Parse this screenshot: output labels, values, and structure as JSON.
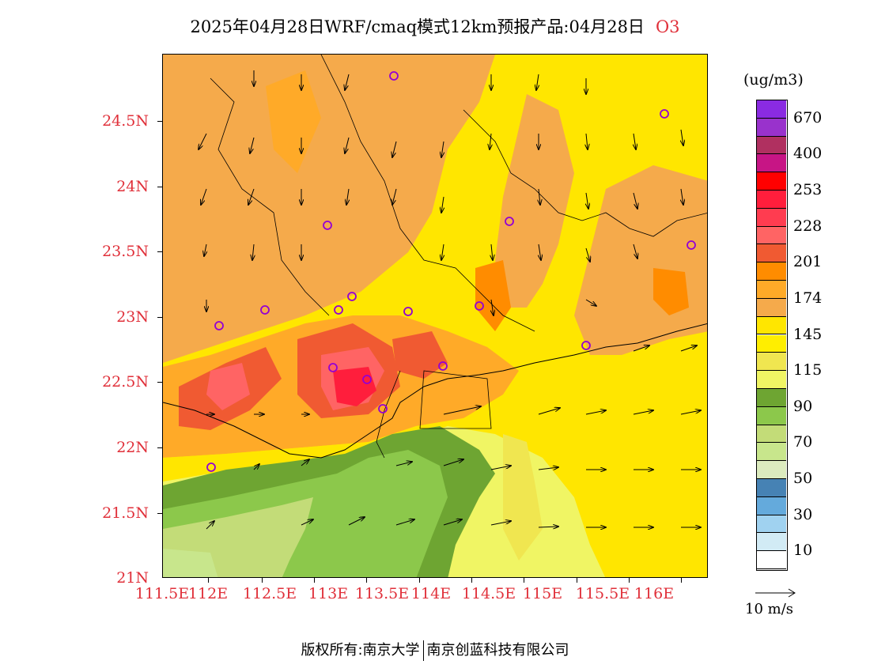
{
  "title": {
    "main": "2025年04月28日WRF/cmaq模式12km预报产品:04月28日",
    "variable": "O3"
  },
  "map": {
    "lat_labels": [
      "24.5N",
      "24N",
      "23.5N",
      "23N",
      "22.5N",
      "22N",
      "21.5N",
      "21N"
    ],
    "lon_labels": [
      "111.5E",
      "112E",
      "112.5E",
      "113E",
      "113.5E",
      "114E",
      "114.5E",
      "115E",
      "115.5E",
      "116E"
    ],
    "lat_range": [
      21,
      25
    ],
    "lon_range": [
      111.5,
      116.7
    ],
    "field": "O3 concentration",
    "wind_vectors": "southwesterly near coast, northerly inland",
    "max_marker_symbol": "circle"
  },
  "legend": {
    "unit": "(ug/m3)",
    "levels": [
      {
        "label": "670",
        "color": "#8a2be2"
      },
      {
        "label": "",
        "color": "#9932cc"
      },
      {
        "label": "400",
        "color": "#b03060"
      },
      {
        "label": "",
        "color": "#c71585"
      },
      {
        "label": "253",
        "color": "#ff0000"
      },
      {
        "label": "",
        "color": "#ff1e3c"
      },
      {
        "label": "228",
        "color": "#ff3c50"
      },
      {
        "label": "",
        "color": "#ff6464"
      },
      {
        "label": "201",
        "color": "#f05a32"
      },
      {
        "label": "",
        "color": "#ff8c00"
      },
      {
        "label": "174",
        "color": "#ffaa28"
      },
      {
        "label": "",
        "color": "#f5aa4b"
      },
      {
        "label": "145",
        "color": "#ffe600"
      },
      {
        "label": "",
        "color": "#ffee00"
      },
      {
        "label": "115",
        "color": "#f0e650"
      },
      {
        "label": "",
        "color": "#f0f564"
      },
      {
        "label": "90",
        "color": "#6ea532"
      },
      {
        "label": "",
        "color": "#8cc84b"
      },
      {
        "label": "70",
        "color": "#c3dc78"
      },
      {
        "label": "",
        "color": "#c8e68c"
      },
      {
        "label": "50",
        "color": "#dcebbe"
      },
      {
        "label": "",
        "color": "#4682b4"
      },
      {
        "label": "30",
        "color": "#64aadc"
      },
      {
        "label": "",
        "color": "#a0d2f0"
      },
      {
        "label": "10",
        "color": "#d2ebf5"
      },
      {
        "label": "",
        "color": "#ffffff"
      }
    ],
    "wind_key": "10 m/s"
  },
  "copyright": {
    "left": "版权所有:南京大学",
    "right": "南京创蓝科技有限公司"
  }
}
